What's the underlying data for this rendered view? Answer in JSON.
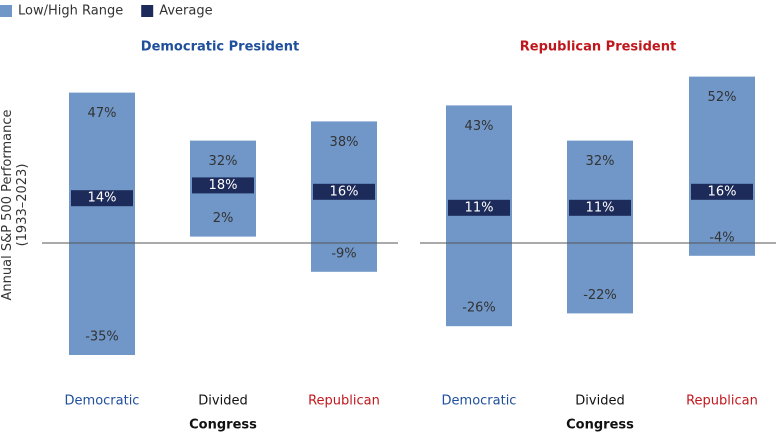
{
  "chart_data": [
    {
      "type": "range-bar",
      "title": "Democratic President",
      "title_color": "#1f4e9c",
      "y_label": [
        "Annual S&P 500 Performance",
        "(1933–2023)"
      ],
      "x_label": "Congress",
      "categories": [
        "Democratic",
        "Divided",
        "Republican"
      ],
      "category_colors": [
        "#1f4e9c",
        "#111111",
        "#c0171c"
      ],
      "ylim": [
        -45,
        60
      ],
      "series": [
        {
          "name": "Low/High Range",
          "color": "#7097c8",
          "low": [
            -35,
            2,
            -9
          ],
          "high": [
            47,
            32,
            38
          ],
          "low_labels": [
            "-35%",
            "2%",
            "-9%"
          ],
          "high_labels": [
            "47%",
            "32%",
            "38%"
          ]
        },
        {
          "name": "Average",
          "color": "#1c2b5a",
          "values": [
            14,
            18,
            16
          ],
          "value_labels": [
            "14%",
            "18%",
            "16%"
          ]
        }
      ]
    },
    {
      "type": "range-bar",
      "title": "Republican President",
      "title_color": "#c0171c",
      "x_label": "Congress",
      "categories": [
        "Democratic",
        "Divided",
        "Republican"
      ],
      "category_colors": [
        "#1f4e9c",
        "#111111",
        "#c0171c"
      ],
      "ylim": [
        -45,
        60
      ],
      "series": [
        {
          "color": "#7097c8",
          "low": [
            -26,
            -22,
            -4
          ],
          "high": [
            43,
            32,
            52
          ],
          "low_labels": [
            "-26%",
            "-22%",
            "-4%"
          ],
          "high_labels": [
            "43%",
            "32%",
            "52%"
          ]
        },
        {
          "color": "#1c2b5a",
          "values": [
            11,
            11,
            16
          ],
          "value_labels": [
            "11%",
            "11%",
            "16%"
          ]
        }
      ]
    }
  ]
}
